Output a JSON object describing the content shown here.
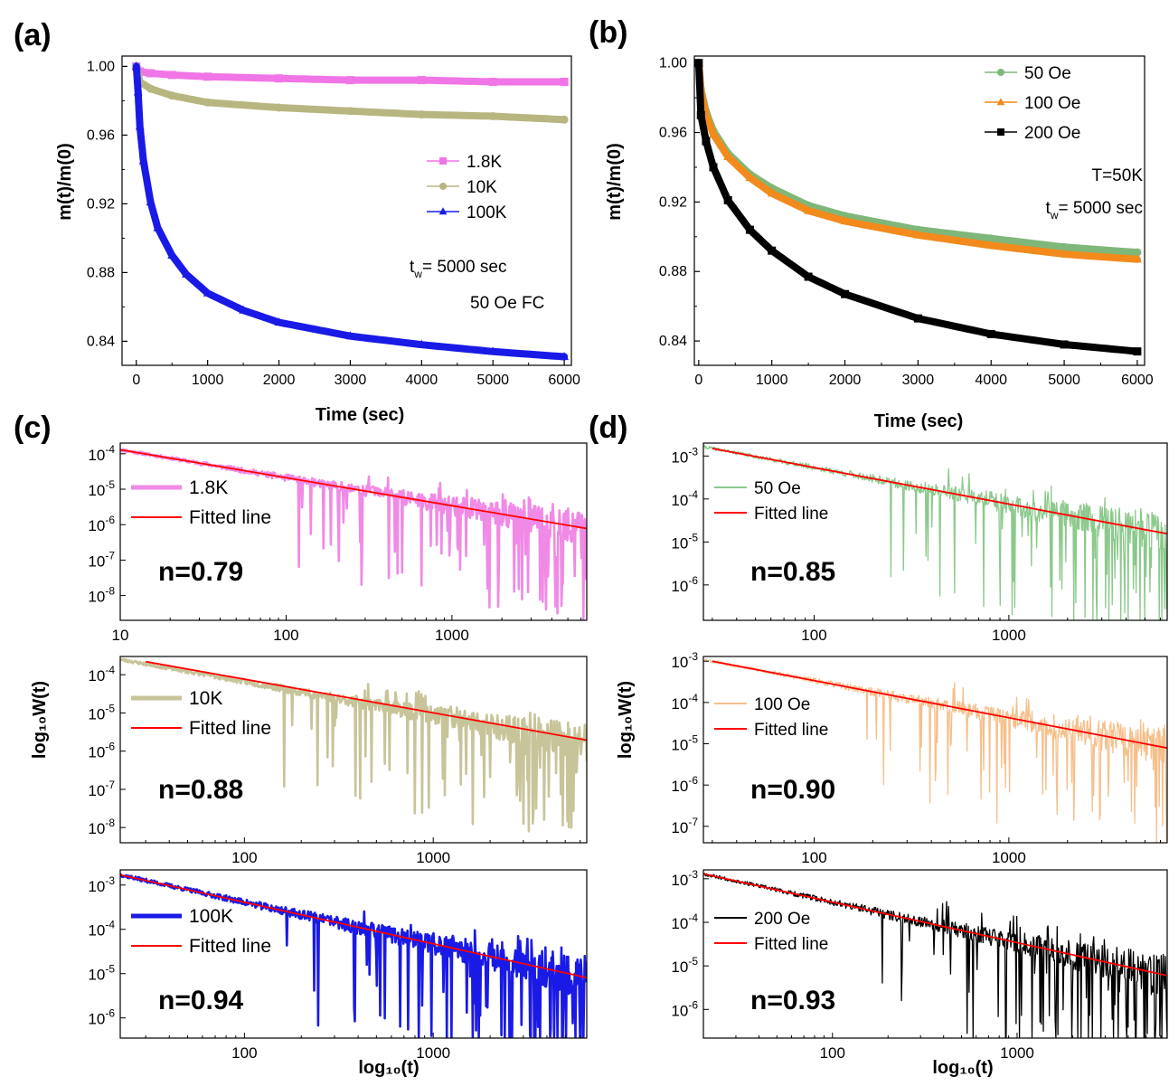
{
  "chart_data": [
    {
      "id": "a",
      "panel_label": "(a)",
      "type": "scatter",
      "xlabel": "Time (sec)",
      "ylabel": "m(t)/m(0)",
      "xlim": [
        -200,
        6100
      ],
      "ylim": [
        0.826,
        1.006
      ],
      "xticks": [
        0,
        1000,
        2000,
        3000,
        4000,
        5000,
        6000
      ],
      "yticks": [
        0.84,
        0.88,
        0.92,
        0.96,
        1.0
      ],
      "ytick_labels": [
        "0.84",
        "0.88",
        "0.92",
        "0.96",
        "1.00"
      ],
      "legend_position": "center-right",
      "annotations": [
        "t_w= 5000 sec",
        "50 Oe FC"
      ],
      "series": [
        {
          "name": "1.8K",
          "color": "#f075e6",
          "marker": "square",
          "x": [
            0,
            50,
            200,
            500,
            1000,
            2000,
            3000,
            4000,
            5000,
            6000
          ],
          "y": [
            1.0,
            0.997,
            0.996,
            0.995,
            0.994,
            0.993,
            0.992,
            0.992,
            0.991,
            0.991
          ]
        },
        {
          "name": "10K",
          "color": "#b8b680",
          "marker": "circle",
          "x": [
            0,
            50,
            200,
            500,
            1000,
            2000,
            3000,
            4000,
            5000,
            6000
          ],
          "y": [
            1.0,
            0.991,
            0.987,
            0.983,
            0.979,
            0.976,
            0.974,
            0.972,
            0.971,
            0.969
          ]
        },
        {
          "name": "100K",
          "color": "#1a1ae6",
          "marker": "triangle",
          "x": [
            0,
            25,
            50,
            100,
            200,
            300,
            500,
            700,
            1000,
            1500,
            2000,
            3000,
            4000,
            5000,
            6000
          ],
          "y": [
            1.0,
            0.985,
            0.965,
            0.945,
            0.921,
            0.906,
            0.89,
            0.879,
            0.868,
            0.858,
            0.851,
            0.843,
            0.838,
            0.834,
            0.831
          ]
        }
      ]
    },
    {
      "id": "b",
      "panel_label": "(b)",
      "type": "scatter",
      "xlabel": "Time (sec)",
      "ylabel": "m(t)/m(0)",
      "xlim": [
        -60,
        6100
      ],
      "ylim": [
        0.826,
        1.004
      ],
      "xticks": [
        0,
        1000,
        2000,
        3000,
        4000,
        5000,
        6000
      ],
      "yticks": [
        0.84,
        0.88,
        0.92,
        0.96,
        1.0
      ],
      "ytick_labels": [
        "0.84",
        "0.88",
        "0.92",
        "0.96",
        "1.00"
      ],
      "legend_position": "top-right",
      "annotations": [
        "T=50K",
        "t_w= 5000 sec"
      ],
      "series": [
        {
          "name": "50 Oe",
          "color": "#7fb77a",
          "marker": "circle",
          "x": [
            0,
            30,
            100,
            200,
            400,
            700,
            1000,
            1500,
            2000,
            3000,
            4000,
            5000,
            6000
          ],
          "y": [
            1.0,
            0.985,
            0.972,
            0.961,
            0.948,
            0.936,
            0.928,
            0.918,
            0.912,
            0.904,
            0.899,
            0.894,
            0.891
          ]
        },
        {
          "name": "100 Oe",
          "color": "#f28a1c",
          "marker": "triangle",
          "x": [
            0,
            30,
            100,
            200,
            400,
            700,
            1000,
            1500,
            2000,
            3000,
            4000,
            5000,
            6000
          ],
          "y": [
            1.0,
            0.984,
            0.97,
            0.959,
            0.946,
            0.934,
            0.925,
            0.915,
            0.909,
            0.901,
            0.895,
            0.89,
            0.887
          ]
        },
        {
          "name": "200 Oe",
          "color": "#000000",
          "marker": "square",
          "x": [
            0,
            30,
            100,
            200,
            400,
            700,
            1000,
            1500,
            2000,
            3000,
            4000,
            5000,
            6000
          ],
          "y": [
            1.0,
            0.97,
            0.955,
            0.94,
            0.921,
            0.904,
            0.892,
            0.877,
            0.867,
            0.853,
            0.844,
            0.838,
            0.834
          ]
        }
      ]
    },
    {
      "id": "c1",
      "panel_label": "(c)",
      "type": "line",
      "xscale": "log",
      "yscale": "log",
      "xlim": [
        10,
        6500
      ],
      "ylim": [
        2e-09,
        0.0002
      ],
      "xticks": [
        10,
        100,
        1000
      ],
      "xtick_labels": [
        "10",
        "100",
        "1000"
      ],
      "yticks": [
        1e-08,
        1e-07,
        1e-06,
        1e-05,
        0.0001
      ],
      "ytick_exponents": [
        "-8",
        "-7",
        "-6",
        "-5",
        "-4"
      ],
      "legend_position": "upper-left",
      "annotation": "n=0.79",
      "series": [
        {
          "name": "1.8K",
          "color": "#f08ae6",
          "kind": "noisy",
          "slope": -0.79,
          "x0": 10,
          "y0": 0.00013,
          "seed": 11,
          "floor": 2e-09
        },
        {
          "name": "Fitted line",
          "color": "#ff0000",
          "kind": "fit",
          "slope": -0.79,
          "x0": 10,
          "y0": 0.00013
        }
      ]
    },
    {
      "id": "c2",
      "type": "line",
      "xscale": "log",
      "yscale": "log",
      "ylabel": "log₁₀W(t)",
      "xlim": [
        22,
        6500
      ],
      "ylim": [
        4e-09,
        0.0003
      ],
      "xticks": [
        100,
        1000
      ],
      "xtick_labels": [
        "100",
        "1000"
      ],
      "yticks": [
        1e-08,
        1e-07,
        1e-06,
        1e-05,
        0.0001
      ],
      "ytick_exponents": [
        "-8",
        "-7",
        "-6",
        "-5",
        "-4"
      ],
      "legend_position": "upper-left",
      "annotation": "n=0.88",
      "series": [
        {
          "name": "10K",
          "color": "#c8c49a",
          "kind": "noisy",
          "slope": -0.88,
          "x0": 22,
          "y0": 0.00025,
          "seed": 23,
          "floor": 4e-09
        },
        {
          "name": "Fitted line",
          "color": "#ff0000",
          "kind": "fit",
          "slope": -0.88,
          "x0": 30,
          "y0": 0.00022
        }
      ]
    },
    {
      "id": "c3",
      "type": "line",
      "xscale": "log",
      "yscale": "log",
      "xlabel": "log₁₀(t)",
      "xlim": [
        22,
        6500
      ],
      "ylim": [
        3.5e-07,
        0.0022
      ],
      "xticks": [
        100,
        1000
      ],
      "xtick_labels": [
        "100",
        "1000"
      ],
      "yticks": [
        1e-06,
        1e-05,
        0.0001,
        0.001
      ],
      "ytick_exponents": [
        "-6",
        "-5",
        "-4",
        "-3"
      ],
      "legend_position": "lower-left",
      "annotation": "n=0.94",
      "series": [
        {
          "name": "100K",
          "color": "#1a1ae6",
          "kind": "noisy",
          "slope": -0.94,
          "x0": 22,
          "y0": 0.0017,
          "seed": 37,
          "floor": 3.5e-07
        },
        {
          "name": "Fitted line",
          "color": "#ff0000",
          "kind": "fit",
          "slope": -0.94,
          "x0": 22,
          "y0": 0.0017
        }
      ]
    },
    {
      "id": "d1",
      "panel_label": "(d)",
      "type": "line",
      "xscale": "log",
      "yscale": "log",
      "xlim": [
        27,
        6500
      ],
      "ylim": [
        1.5e-07,
        0.002
      ],
      "xticks": [
        100,
        1000
      ],
      "xtick_labels": [
        "100",
        "1000"
      ],
      "yticks": [
        1e-06,
        1e-05,
        0.0001,
        0.001
      ],
      "ytick_exponents": [
        "-6",
        "-5",
        "-4",
        "-3"
      ],
      "legend_position": "upper-left",
      "annotation": "n=0.85",
      "series": [
        {
          "name": "50 Oe",
          "color": "#8cc98c",
          "kind": "noisy",
          "slope": -0.85,
          "x0": 30,
          "y0": 0.0015,
          "seed": 41,
          "floor": 1.5e-07
        },
        {
          "name": "Fitted line",
          "color": "#ff0000",
          "kind": "fit",
          "slope": -0.85,
          "x0": 30,
          "y0": 0.0015
        }
      ]
    },
    {
      "id": "d2",
      "type": "line",
      "xscale": "log",
      "yscale": "log",
      "ylabel": "log₁₀W(t)",
      "xlim": [
        27,
        6500
      ],
      "ylim": [
        4e-08,
        0.0013
      ],
      "xticks": [
        100,
        1000
      ],
      "xtick_labels": [
        "100",
        "1000"
      ],
      "yticks": [
        1e-07,
        1e-06,
        1e-05,
        0.0001,
        0.001
      ],
      "ytick_exponents": [
        "-7",
        "-6",
        "-5",
        "-4",
        "-3"
      ],
      "legend_position": "upper-left",
      "annotation": "n=0.90",
      "series": [
        {
          "name": "100 Oe",
          "color": "#f5c08c",
          "kind": "noisy",
          "slope": -0.9,
          "x0": 30,
          "y0": 0.001,
          "seed": 53,
          "floor": 4e-08
        },
        {
          "name": "Fitted line",
          "color": "#ff0000",
          "kind": "fit",
          "slope": -0.9,
          "x0": 30,
          "y0": 0.001
        }
      ]
    },
    {
      "id": "d3",
      "type": "line",
      "xscale": "log",
      "yscale": "log",
      "xlabel": "log₁₀(t)",
      "xlim": [
        20,
        6500
      ],
      "ylim": [
        2.2e-07,
        0.0016
      ],
      "xticks": [
        100,
        1000
      ],
      "xtick_labels": [
        "100",
        "1000"
      ],
      "yticks": [
        1e-06,
        1e-05,
        0.0001,
        0.001
      ],
      "ytick_exponents": [
        "-6",
        "-5",
        "-4",
        "-3"
      ],
      "legend_position": "lower-left",
      "annotation": "n=0.93",
      "series": [
        {
          "name": "200 Oe",
          "color": "#000000",
          "kind": "noisy",
          "slope": -0.93,
          "x0": 20,
          "y0": 0.0013,
          "seed": 67,
          "floor": 2.2e-07
        },
        {
          "name": "Fitted line",
          "color": "#ff0000",
          "kind": "fit",
          "slope": -0.93,
          "x0": 20,
          "y0": 0.0013
        }
      ]
    }
  ]
}
